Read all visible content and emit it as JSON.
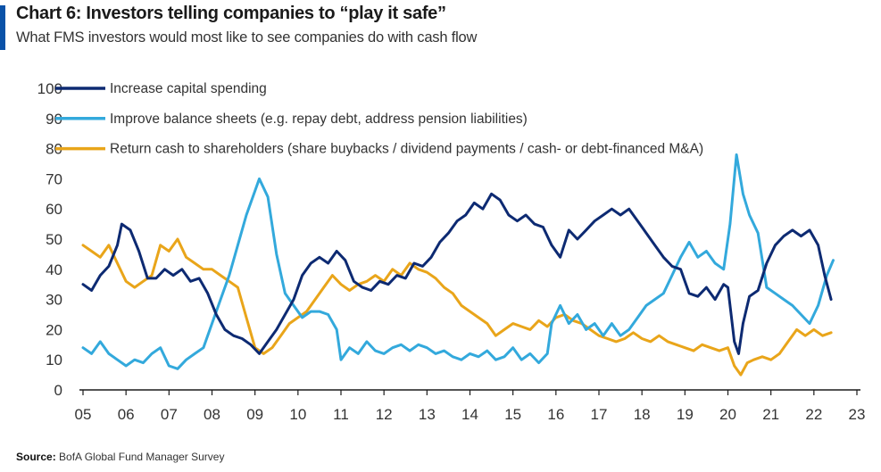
{
  "header": {
    "title": "Chart 6: Investors telling companies to “play it safe”",
    "subtitle": "What FMS investors would most like to see companies do with cash flow"
  },
  "footer": {
    "source_label": "Source",
    "source_text": "BofA Global Fund Manager Survey"
  },
  "colors": {
    "accent": "#0a52a8",
    "capex": "#0d2a72",
    "balance": "#33a9dc",
    "cash": "#e9a51a",
    "axis": "#1a1a1a",
    "text": "#333333"
  },
  "chart_data": {
    "type": "line",
    "title": "Chart 6: Investors telling companies to “play it safe”",
    "subtitle": "What FMS investors would most like to see companies do with cash flow",
    "xlabel": "",
    "ylabel": "",
    "ylim": [
      0,
      100
    ],
    "xlim": [
      2005,
      2023
    ],
    "yticks": [
      0,
      10,
      20,
      30,
      40,
      50,
      60,
      70,
      80,
      90,
      100
    ],
    "xtick_labels": [
      "05",
      "06",
      "07",
      "08",
      "09",
      "10",
      "11",
      "12",
      "13",
      "14",
      "15",
      "16",
      "17",
      "18",
      "19",
      "20",
      "21",
      "22",
      "23"
    ],
    "grid": false,
    "legend": "top-left",
    "series": [
      {
        "name": "Increase capital spending",
        "color": "#0d2a72",
        "points": [
          [
            2005.0,
            35
          ],
          [
            2005.2,
            33
          ],
          [
            2005.4,
            38
          ],
          [
            2005.6,
            41
          ],
          [
            2005.8,
            48
          ],
          [
            2005.9,
            55
          ],
          [
            2006.1,
            53
          ],
          [
            2006.3,
            46
          ],
          [
            2006.5,
            37
          ],
          [
            2006.7,
            37
          ],
          [
            2006.9,
            40
          ],
          [
            2007.1,
            38
          ],
          [
            2007.3,
            40
          ],
          [
            2007.5,
            36
          ],
          [
            2007.7,
            37
          ],
          [
            2007.9,
            32
          ],
          [
            2008.1,
            25
          ],
          [
            2008.3,
            20
          ],
          [
            2008.5,
            18
          ],
          [
            2008.7,
            17
          ],
          [
            2008.9,
            15
          ],
          [
            2009.1,
            12
          ],
          [
            2009.3,
            16
          ],
          [
            2009.5,
            20
          ],
          [
            2009.7,
            25
          ],
          [
            2009.9,
            30
          ],
          [
            2010.1,
            38
          ],
          [
            2010.3,
            42
          ],
          [
            2010.5,
            44
          ],
          [
            2010.7,
            42
          ],
          [
            2010.9,
            46
          ],
          [
            2011.1,
            43
          ],
          [
            2011.3,
            36
          ],
          [
            2011.5,
            34
          ],
          [
            2011.7,
            33
          ],
          [
            2011.9,
            36
          ],
          [
            2012.1,
            35
          ],
          [
            2012.3,
            38
          ],
          [
            2012.5,
            37
          ],
          [
            2012.7,
            42
          ],
          [
            2012.9,
            41
          ],
          [
            2013.1,
            44
          ],
          [
            2013.3,
            49
          ],
          [
            2013.5,
            52
          ],
          [
            2013.7,
            56
          ],
          [
            2013.9,
            58
          ],
          [
            2014.1,
            62
          ],
          [
            2014.3,
            60
          ],
          [
            2014.5,
            65
          ],
          [
            2014.7,
            63
          ],
          [
            2014.9,
            58
          ],
          [
            2015.1,
            56
          ],
          [
            2015.3,
            58
          ],
          [
            2015.5,
            55
          ],
          [
            2015.7,
            54
          ],
          [
            2015.9,
            48
          ],
          [
            2016.1,
            44
          ],
          [
            2016.3,
            53
          ],
          [
            2016.5,
            50
          ],
          [
            2016.7,
            53
          ],
          [
            2016.9,
            56
          ],
          [
            2017.1,
            58
          ],
          [
            2017.3,
            60
          ],
          [
            2017.5,
            58
          ],
          [
            2017.7,
            60
          ],
          [
            2017.9,
            56
          ],
          [
            2018.1,
            52
          ],
          [
            2018.3,
            48
          ],
          [
            2018.5,
            44
          ],
          [
            2018.7,
            41
          ],
          [
            2018.9,
            40
          ],
          [
            2019.1,
            32
          ],
          [
            2019.3,
            31
          ],
          [
            2019.5,
            34
          ],
          [
            2019.7,
            30
          ],
          [
            2019.9,
            35
          ],
          [
            2020.0,
            34
          ],
          [
            2020.15,
            16
          ],
          [
            2020.25,
            12
          ],
          [
            2020.35,
            22
          ],
          [
            2020.5,
            31
          ],
          [
            2020.7,
            33
          ],
          [
            2020.9,
            42
          ],
          [
            2021.1,
            48
          ],
          [
            2021.3,
            51
          ],
          [
            2021.5,
            53
          ],
          [
            2021.7,
            51
          ],
          [
            2021.9,
            53
          ],
          [
            2022.1,
            48
          ],
          [
            2022.25,
            38
          ],
          [
            2022.4,
            30
          ]
        ]
      },
      {
        "name": "Improve balance sheets (e.g. repay debt, address pension liabilities)",
        "color": "#33a9dc",
        "points": [
          [
            2005.0,
            14
          ],
          [
            2005.2,
            12
          ],
          [
            2005.4,
            16
          ],
          [
            2005.6,
            12
          ],
          [
            2005.8,
            10
          ],
          [
            2006.0,
            8
          ],
          [
            2006.2,
            10
          ],
          [
            2006.4,
            9
          ],
          [
            2006.6,
            12
          ],
          [
            2006.8,
            14
          ],
          [
            2007.0,
            8
          ],
          [
            2007.2,
            7
          ],
          [
            2007.4,
            10
          ],
          [
            2007.6,
            12
          ],
          [
            2007.8,
            14
          ],
          [
            2008.0,
            22
          ],
          [
            2008.2,
            30
          ],
          [
            2008.4,
            38
          ],
          [
            2008.6,
            48
          ],
          [
            2008.8,
            58
          ],
          [
            2009.0,
            66
          ],
          [
            2009.1,
            70
          ],
          [
            2009.3,
            64
          ],
          [
            2009.5,
            45
          ],
          [
            2009.7,
            32
          ],
          [
            2009.9,
            28
          ],
          [
            2010.1,
            24
          ],
          [
            2010.3,
            26
          ],
          [
            2010.5,
            26
          ],
          [
            2010.7,
            25
          ],
          [
            2010.9,
            20
          ],
          [
            2011.0,
            10
          ],
          [
            2011.2,
            14
          ],
          [
            2011.4,
            12
          ],
          [
            2011.6,
            16
          ],
          [
            2011.8,
            13
          ],
          [
            2012.0,
            12
          ],
          [
            2012.2,
            14
          ],
          [
            2012.4,
            15
          ],
          [
            2012.6,
            13
          ],
          [
            2012.8,
            15
          ],
          [
            2013.0,
            14
          ],
          [
            2013.2,
            12
          ],
          [
            2013.4,
            13
          ],
          [
            2013.6,
            11
          ],
          [
            2013.8,
            10
          ],
          [
            2014.0,
            12
          ],
          [
            2014.2,
            11
          ],
          [
            2014.4,
            13
          ],
          [
            2014.6,
            10
          ],
          [
            2014.8,
            11
          ],
          [
            2015.0,
            14
          ],
          [
            2015.2,
            10
          ],
          [
            2015.4,
            12
          ],
          [
            2015.6,
            9
          ],
          [
            2015.8,
            12
          ],
          [
            2015.9,
            22
          ],
          [
            2016.1,
            28
          ],
          [
            2016.3,
            22
          ],
          [
            2016.5,
            25
          ],
          [
            2016.7,
            20
          ],
          [
            2016.9,
            22
          ],
          [
            2017.1,
            18
          ],
          [
            2017.3,
            22
          ],
          [
            2017.5,
            18
          ],
          [
            2017.7,
            20
          ],
          [
            2017.9,
            24
          ],
          [
            2018.1,
            28
          ],
          [
            2018.3,
            30
          ],
          [
            2018.5,
            32
          ],
          [
            2018.7,
            38
          ],
          [
            2018.9,
            44
          ],
          [
            2019.1,
            49
          ],
          [
            2019.3,
            44
          ],
          [
            2019.5,
            46
          ],
          [
            2019.7,
            42
          ],
          [
            2019.9,
            40
          ],
          [
            2020.05,
            55
          ],
          [
            2020.2,
            78
          ],
          [
            2020.35,
            65
          ],
          [
            2020.5,
            58
          ],
          [
            2020.7,
            52
          ],
          [
            2020.9,
            34
          ],
          [
            2021.1,
            32
          ],
          [
            2021.3,
            30
          ],
          [
            2021.5,
            28
          ],
          [
            2021.7,
            25
          ],
          [
            2021.9,
            22
          ],
          [
            2022.1,
            28
          ],
          [
            2022.3,
            38
          ],
          [
            2022.45,
            43
          ]
        ]
      },
      {
        "name": "Return cash to shareholders (share buybacks / dividend payments / cash- or debt-financed M&A)",
        "color": "#e9a51a",
        "points": [
          [
            2005.0,
            48
          ],
          [
            2005.2,
            46
          ],
          [
            2005.4,
            44
          ],
          [
            2005.6,
            48
          ],
          [
            2005.8,
            42
          ],
          [
            2006.0,
            36
          ],
          [
            2006.2,
            34
          ],
          [
            2006.4,
            36
          ],
          [
            2006.6,
            38
          ],
          [
            2006.8,
            48
          ],
          [
            2007.0,
            46
          ],
          [
            2007.2,
            50
          ],
          [
            2007.4,
            44
          ],
          [
            2007.6,
            42
          ],
          [
            2007.8,
            40
          ],
          [
            2008.0,
            40
          ],
          [
            2008.2,
            38
          ],
          [
            2008.4,
            36
          ],
          [
            2008.6,
            34
          ],
          [
            2008.8,
            24
          ],
          [
            2009.0,
            14
          ],
          [
            2009.2,
            12
          ],
          [
            2009.4,
            14
          ],
          [
            2009.6,
            18
          ],
          [
            2009.8,
            22
          ],
          [
            2010.0,
            24
          ],
          [
            2010.2,
            26
          ],
          [
            2010.4,
            30
          ],
          [
            2010.6,
            34
          ],
          [
            2010.8,
            38
          ],
          [
            2011.0,
            35
          ],
          [
            2011.2,
            33
          ],
          [
            2011.4,
            35
          ],
          [
            2011.6,
            36
          ],
          [
            2011.8,
            38
          ],
          [
            2012.0,
            36
          ],
          [
            2012.2,
            40
          ],
          [
            2012.4,
            38
          ],
          [
            2012.6,
            42
          ],
          [
            2012.8,
            40
          ],
          [
            2013.0,
            39
          ],
          [
            2013.2,
            37
          ],
          [
            2013.4,
            34
          ],
          [
            2013.6,
            32
          ],
          [
            2013.8,
            28
          ],
          [
            2014.0,
            26
          ],
          [
            2014.2,
            24
          ],
          [
            2014.4,
            22
          ],
          [
            2014.6,
            18
          ],
          [
            2014.8,
            20
          ],
          [
            2015.0,
            22
          ],
          [
            2015.2,
            21
          ],
          [
            2015.4,
            20
          ],
          [
            2015.6,
            23
          ],
          [
            2015.8,
            21
          ],
          [
            2016.0,
            24
          ],
          [
            2016.2,
            25
          ],
          [
            2016.4,
            23
          ],
          [
            2016.6,
            22
          ],
          [
            2016.8,
            20
          ],
          [
            2017.0,
            18
          ],
          [
            2017.2,
            17
          ],
          [
            2017.4,
            16
          ],
          [
            2017.6,
            17
          ],
          [
            2017.8,
            19
          ],
          [
            2018.0,
            17
          ],
          [
            2018.2,
            16
          ],
          [
            2018.4,
            18
          ],
          [
            2018.6,
            16
          ],
          [
            2018.8,
            15
          ],
          [
            2019.0,
            14
          ],
          [
            2019.2,
            13
          ],
          [
            2019.4,
            15
          ],
          [
            2019.6,
            14
          ],
          [
            2019.8,
            13
          ],
          [
            2020.0,
            14
          ],
          [
            2020.15,
            8
          ],
          [
            2020.3,
            5
          ],
          [
            2020.45,
            9
          ],
          [
            2020.6,
            10
          ],
          [
            2020.8,
            11
          ],
          [
            2021.0,
            10
          ],
          [
            2021.2,
            12
          ],
          [
            2021.4,
            16
          ],
          [
            2021.6,
            20
          ],
          [
            2021.8,
            18
          ],
          [
            2022.0,
            20
          ],
          [
            2022.2,
            18
          ],
          [
            2022.4,
            19
          ]
        ]
      }
    ]
  }
}
